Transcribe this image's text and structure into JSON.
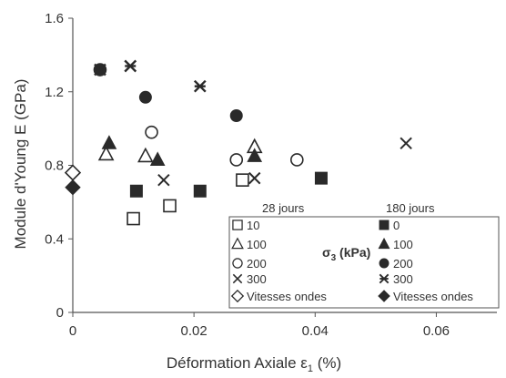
{
  "chart_data": {
    "type": "scatter",
    "xlabel": "Déformation Axiale ε",
    "xlabel_sub": "1",
    "xlabel_unit": " (%)",
    "ylabel": "Module  d'Young    E (GPa)",
    "xlim": [
      0,
      0.07
    ],
    "ylim": [
      0,
      1.6
    ],
    "xticks": [
      0,
      0.02,
      0.04,
      0.06
    ],
    "yticks": [
      0,
      0.4,
      0.8,
      1.2,
      1.6
    ],
    "xtick_labels": [
      "0",
      "0.02",
      "0.04",
      "0.06"
    ],
    "ytick_labels": [
      "0",
      "0.4",
      "0.8",
      "1.2",
      "1.6"
    ],
    "grid": false,
    "legend": {
      "placement": "bottom-right",
      "group_left_title": "28 jours",
      "group_right_title": "180 jours",
      "sigma_label": "σ",
      "sigma_sub": "3",
      "sigma_unit": " (kPa)"
    },
    "colors": {
      "marker": "#2a2a2a",
      "axis": "#555555"
    },
    "series": [
      {
        "name": "10",
        "age": "28 jours",
        "marker": "square-open",
        "points": [
          [
            0.01,
            0.51
          ],
          [
            0.016,
            0.58
          ],
          [
            0.028,
            0.72
          ]
        ]
      },
      {
        "name": "0",
        "age": "180 jours",
        "marker": "square-filled",
        "points": [
          [
            0.0105,
            0.66
          ],
          [
            0.021,
            0.66
          ],
          [
            0.041,
            0.73
          ]
        ]
      },
      {
        "name": "100",
        "age": "28 jours",
        "marker": "triangle-open",
        "points": [
          [
            0.0055,
            0.86
          ],
          [
            0.012,
            0.85
          ],
          [
            0.03,
            0.9
          ]
        ]
      },
      {
        "name": "100",
        "age": "180 jours",
        "marker": "triangle-filled",
        "points": [
          [
            0.006,
            0.92
          ],
          [
            0.014,
            0.83
          ],
          [
            0.03,
            0.85
          ]
        ]
      },
      {
        "name": "200",
        "age": "28 jours",
        "marker": "circle-open",
        "points": [
          [
            0.0045,
            1.32
          ],
          [
            0.013,
            0.98
          ],
          [
            0.027,
            0.83
          ],
          [
            0.037,
            0.83
          ]
        ]
      },
      {
        "name": "200",
        "age": "180 jours",
        "marker": "circle-filled",
        "points": [
          [
            0.0045,
            1.32
          ],
          [
            0.012,
            1.17
          ],
          [
            0.027,
            1.07
          ]
        ]
      },
      {
        "name": "300",
        "age": "28 jours",
        "marker": "x",
        "points": [
          [
            0.0095,
            1.34
          ],
          [
            0.015,
            0.72
          ],
          [
            0.03,
            0.73
          ],
          [
            0.055,
            0.92
          ]
        ]
      },
      {
        "name": "300",
        "age": "180 jours",
        "marker": "asterisk",
        "points": [
          [
            0.0045,
            1.32
          ],
          [
            0.0095,
            1.34
          ],
          [
            0.021,
            1.23
          ]
        ]
      },
      {
        "name": "Vitesses ondes",
        "age": "28 jours",
        "marker": "diamond-open",
        "points": [
          [
            0.0,
            0.76
          ]
        ]
      },
      {
        "name": "Vitesses ondes",
        "age": "180 jours",
        "marker": "diamond-filled",
        "points": [
          [
            0.0,
            0.68
          ]
        ]
      }
    ]
  }
}
